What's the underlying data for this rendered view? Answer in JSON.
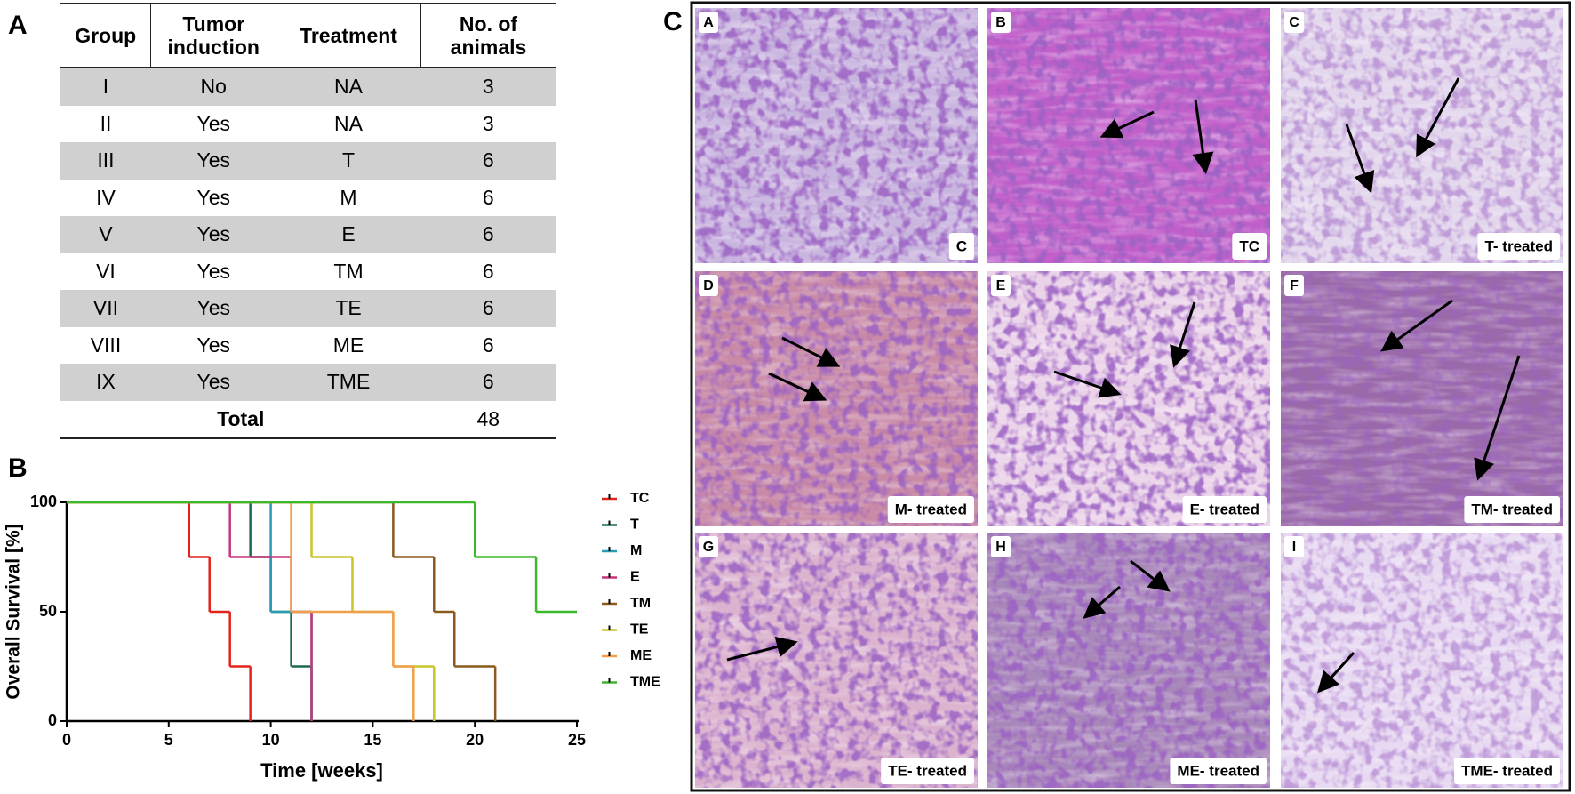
{
  "panel_labels": [
    "A",
    "B",
    "C"
  ],
  "table": {
    "header": [
      "Group",
      "Tumor induction",
      "Treatment",
      "No. of animals"
    ],
    "rows": [
      [
        "I",
        "No",
        "NA",
        3
      ],
      [
        "II",
        "Yes",
        "NA",
        3
      ],
      [
        "III",
        "Yes",
        "T",
        6
      ],
      [
        "IV",
        "Yes",
        "M",
        6
      ],
      [
        "V",
        "Yes",
        "E",
        6
      ],
      [
        "VI",
        "Yes",
        "TM",
        6
      ],
      [
        "VII",
        "Yes",
        "TE",
        6
      ],
      [
        "VIII",
        "Yes",
        "ME",
        6
      ],
      [
        "IX",
        "Yes",
        "TME",
        6
      ]
    ],
    "total": {
      "label": "Total",
      "value": 48
    }
  },
  "chart_data": {
    "type": "step",
    "xlabel": "Time [weeks]",
    "ylabel": "Overall Survival [%]",
    "xlim": [
      0,
      25
    ],
    "xticks": [
      0,
      5,
      10,
      15,
      20,
      25
    ],
    "ylim": [
      0,
      100
    ],
    "yticks": [
      0,
      50,
      100
    ],
    "series": [
      {
        "name": "TC",
        "color": "#e3231b",
        "x": [
          0,
          6,
          7,
          8,
          9
        ],
        "values": [
          100,
          75,
          50,
          25,
          0
        ]
      },
      {
        "name": "T",
        "color": "#1c6a4d",
        "x": [
          0,
          9,
          10,
          11,
          12
        ],
        "values": [
          100,
          75,
          50,
          25,
          0
        ]
      },
      {
        "name": "M",
        "color": "#2a9bb5",
        "x": [
          0,
          10,
          12
        ],
        "values": [
          100,
          50,
          0
        ]
      },
      {
        "name": "E",
        "color": "#c8357d",
        "x": [
          0,
          8,
          11,
          12
        ],
        "values": [
          100,
          75,
          50,
          0
        ]
      },
      {
        "name": "TM",
        "color": "#8b5a1e",
        "x": [
          0,
          16,
          18,
          19,
          21
        ],
        "values": [
          100,
          75,
          50,
          25,
          0
        ]
      },
      {
        "name": "TE",
        "color": "#c9c42a",
        "x": [
          0,
          12,
          14,
          16,
          18
        ],
        "values": [
          100,
          75,
          50,
          25,
          0
        ]
      },
      {
        "name": "ME",
        "color": "#f0a04a",
        "x": [
          0,
          11,
          16,
          17
        ],
        "values": [
          100,
          50,
          25,
          0
        ]
      },
      {
        "name": "TME",
        "color": "#3cb82b",
        "x": [
          0,
          20,
          23,
          25
        ],
        "values": [
          100,
          75,
          50,
          50
        ]
      }
    ]
  },
  "images": [
    {
      "letter": "A",
      "caption": "C"
    },
    {
      "letter": "B",
      "caption": "TC"
    },
    {
      "letter": "C",
      "caption": "T- treated"
    },
    {
      "letter": "D",
      "caption": "M- treated"
    },
    {
      "letter": "E",
      "caption": "E- treated"
    },
    {
      "letter": "F",
      "caption": "TM- treated"
    },
    {
      "letter": "G",
      "caption": "TE- treated"
    },
    {
      "letter": "H",
      "caption": "ME- treated"
    },
    {
      "letter": "I",
      "caption": "TME- treated"
    }
  ]
}
